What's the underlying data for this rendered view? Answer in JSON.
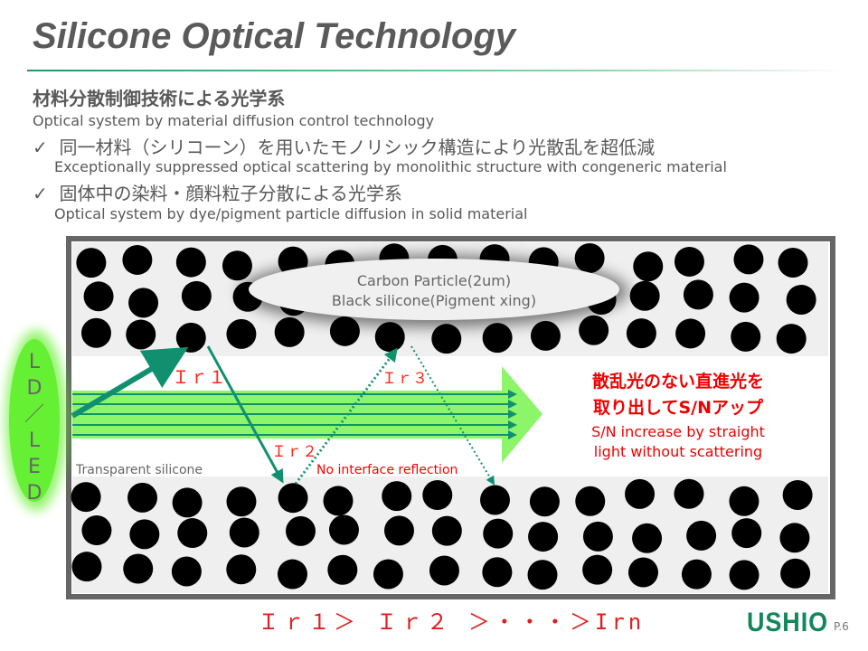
{
  "title": "Silicone Optical Technology",
  "heading": {
    "jp": "材料分散制御技術による光学系",
    "en": "Optical system by material diffusion control technology"
  },
  "bullets": [
    {
      "mark": "✓",
      "jp": "同一材料（シリコーン）を用いたモノリシック構造により光散乱を超低減",
      "en": "Exceptionally suppressed optical scattering by monolithic structure with congeneric material"
    },
    {
      "mark": "✓",
      "jp": "固体中の染料・顔料粒子分散による光学系",
      "en": "Optical system by dye/pigment particle diffusion in solid material"
    }
  ],
  "diagram": {
    "source_label": [
      "L",
      "D",
      "／",
      "L",
      "E",
      "D"
    ],
    "particle_label_1": "Carbon Particle(2um)",
    "particle_label_2": "Black silicone(Pigment xing)",
    "ir1": "Ｉｒ１",
    "ir2": "Ｉｒ２",
    "ir3": "Ｉｒ３",
    "transparent": "Transparent silicone",
    "no_reflection": "No interface reflection",
    "result_jp_1": "散乱光のない直進光を",
    "result_jp_2": "取り出してS/Nアップ",
    "result_en_1": "S/N increase by straight",
    "result_en_2": "light without scattering",
    "colors": {
      "beam": "#8cf56a",
      "arrow": "#119070",
      "label": "#ff2a1a",
      "source": "#66f033"
    }
  },
  "inequality": "Ｉｒ１＞ Ｉｒ２ ＞・・・＞Irn",
  "logo": "USHIO",
  "page": "P.6"
}
